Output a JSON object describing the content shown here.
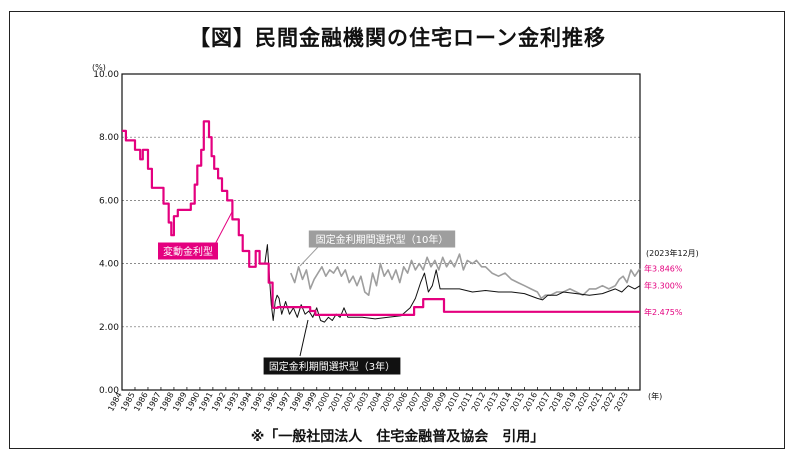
{
  "page": {
    "title": "【図】民間金融機関の住宅ローン金利推移",
    "source_note": "※「一般社団法人　住宅金融普及協会　引用」"
  },
  "chart_data": {
    "type": "line",
    "title": "【図】民間金融機関の住宅ローン金利推移",
    "y_unit": "(%)",
    "x_unit": "(年)",
    "ylim": [
      0,
      10
    ],
    "xlim": [
      1984,
      2023.9
    ],
    "y_ticks": [
      "0.00",
      "2.00",
      "4.00",
      "6.00",
      "8.00",
      "10.00"
    ],
    "x_ticks": [
      "1984",
      "1985",
      "1986",
      "1987",
      "1988",
      "1989",
      "1990",
      "1991",
      "1992",
      "1993",
      "1994",
      "1995",
      "1996",
      "1997",
      "1998",
      "1999",
      "2000",
      "2001",
      "2002",
      "2003",
      "2004",
      "2005",
      "2006",
      "2007",
      "2008",
      "2009",
      "2010",
      "2011",
      "2012",
      "2013",
      "2014",
      "2015",
      "2016",
      "2017",
      "2018",
      "2019",
      "2020",
      "2021",
      "2022",
      "2023"
    ],
    "grid": true,
    "date_note": "(2023年12月)",
    "series": [
      {
        "name": "変動金利型",
        "color": "#e4007f",
        "points": [
          [
            1984.0,
            8.2
          ],
          [
            1984.3,
            8.2
          ],
          [
            1984.3,
            7.9
          ],
          [
            1985.0,
            7.9
          ],
          [
            1985.0,
            7.6
          ],
          [
            1985.4,
            7.6
          ],
          [
            1985.4,
            7.3
          ],
          [
            1985.6,
            7.3
          ],
          [
            1985.6,
            7.6
          ],
          [
            1986.0,
            7.6
          ],
          [
            1986.0,
            7.0
          ],
          [
            1986.3,
            7.0
          ],
          [
            1986.3,
            6.4
          ],
          [
            1987.2,
            6.4
          ],
          [
            1987.2,
            5.9
          ],
          [
            1987.6,
            5.9
          ],
          [
            1987.6,
            5.3
          ],
          [
            1987.8,
            5.3
          ],
          [
            1987.8,
            4.9
          ],
          [
            1988.0,
            4.9
          ],
          [
            1988.0,
            5.5
          ],
          [
            1988.3,
            5.5
          ],
          [
            1988.3,
            5.7
          ],
          [
            1989.3,
            5.7
          ],
          [
            1989.3,
            5.9
          ],
          [
            1989.6,
            5.9
          ],
          [
            1989.6,
            6.5
          ],
          [
            1989.8,
            6.5
          ],
          [
            1989.8,
            7.1
          ],
          [
            1990.1,
            7.1
          ],
          [
            1990.1,
            7.6
          ],
          [
            1990.3,
            7.6
          ],
          [
            1990.3,
            8.5
          ],
          [
            1990.7,
            8.5
          ],
          [
            1990.7,
            8.0
          ],
          [
            1990.9,
            8.0
          ],
          [
            1990.9,
            7.4
          ],
          [
            1991.1,
            7.4
          ],
          [
            1991.1,
            7.0
          ],
          [
            1991.4,
            7.0
          ],
          [
            1991.4,
            6.7
          ],
          [
            1991.7,
            6.7
          ],
          [
            1991.7,
            6.3
          ],
          [
            1992.1,
            6.3
          ],
          [
            1992.1,
            6.0
          ],
          [
            1992.5,
            6.0
          ],
          [
            1992.5,
            5.4
          ],
          [
            1993.0,
            5.4
          ],
          [
            1993.0,
            4.9
          ],
          [
            1993.3,
            4.9
          ],
          [
            1993.3,
            4.4
          ],
          [
            1993.8,
            4.4
          ],
          [
            1993.8,
            3.9
          ],
          [
            1994.3,
            3.9
          ],
          [
            1994.3,
            4.4
          ],
          [
            1994.6,
            4.4
          ],
          [
            1994.6,
            4.0
          ],
          [
            1995.3,
            4.0
          ],
          [
            1995.3,
            3.4
          ],
          [
            1995.6,
            3.4
          ],
          [
            1995.6,
            2.6
          ],
          [
            1996.0,
            2.6
          ],
          [
            1996.0,
            2.625
          ],
          [
            1997.0,
            2.625
          ],
          [
            1998.5,
            2.625
          ],
          [
            1998.5,
            2.5
          ],
          [
            1998.9,
            2.5
          ],
          [
            1998.9,
            2.375
          ],
          [
            2001.0,
            2.375
          ],
          [
            2006.5,
            2.375
          ],
          [
            2006.5,
            2.625
          ],
          [
            2007.2,
            2.625
          ],
          [
            2007.2,
            2.875
          ],
          [
            2008.8,
            2.875
          ],
          [
            2008.8,
            2.475
          ],
          [
            2023.9,
            2.475
          ]
        ],
        "end_label": "年2.475%",
        "label_box": true
      },
      {
        "name": "固定金利期間選択型（10年）",
        "color": "#9e9e9e",
        "points": [
          [
            1997.0,
            3.7
          ],
          [
            1997.3,
            3.4
          ],
          [
            1997.6,
            3.9
          ],
          [
            1997.9,
            3.5
          ],
          [
            1998.2,
            3.8
          ],
          [
            1998.5,
            3.2
          ],
          [
            1998.8,
            3.5
          ],
          [
            1999.1,
            3.7
          ],
          [
            1999.4,
            3.9
          ],
          [
            1999.7,
            3.6
          ],
          [
            2000.0,
            3.8
          ],
          [
            2000.3,
            3.7
          ],
          [
            2000.6,
            3.9
          ],
          [
            2000.9,
            3.6
          ],
          [
            2001.2,
            3.8
          ],
          [
            2001.5,
            3.4
          ],
          [
            2001.8,
            3.6
          ],
          [
            2002.1,
            3.3
          ],
          [
            2002.4,
            3.6
          ],
          [
            2002.7,
            3.1
          ],
          [
            2003.0,
            3.0
          ],
          [
            2003.3,
            3.7
          ],
          [
            2003.6,
            3.3
          ],
          [
            2003.9,
            4.0
          ],
          [
            2004.2,
            3.6
          ],
          [
            2004.5,
            3.8
          ],
          [
            2004.8,
            3.5
          ],
          [
            2005.1,
            3.8
          ],
          [
            2005.4,
            3.4
          ],
          [
            2005.7,
            3.9
          ],
          [
            2006.0,
            3.7
          ],
          [
            2006.3,
            4.1
          ],
          [
            2006.6,
            3.8
          ],
          [
            2006.9,
            4.0
          ],
          [
            2007.2,
            3.8
          ],
          [
            2007.5,
            4.2
          ],
          [
            2007.8,
            3.9
          ],
          [
            2008.1,
            4.1
          ],
          [
            2008.4,
            3.8
          ],
          [
            2008.7,
            4.2
          ],
          [
            2009.0,
            3.9
          ],
          [
            2009.3,
            4.1
          ],
          [
            2009.6,
            3.9
          ],
          [
            2010.0,
            4.3
          ],
          [
            2010.3,
            3.8
          ],
          [
            2010.6,
            4.1
          ],
          [
            2011.0,
            4.0
          ],
          [
            2011.3,
            4.1
          ],
          [
            2011.7,
            3.9
          ],
          [
            2012.0,
            3.9
          ],
          [
            2012.5,
            3.7
          ],
          [
            2013.0,
            3.6
          ],
          [
            2013.5,
            3.7
          ],
          [
            2014.0,
            3.5
          ],
          [
            2014.5,
            3.4
          ],
          [
            2015.0,
            3.3
          ],
          [
            2015.5,
            3.2
          ],
          [
            2016.0,
            3.1
          ],
          [
            2016.3,
            2.9
          ],
          [
            2016.6,
            3.0
          ],
          [
            2017.0,
            3.0
          ],
          [
            2017.5,
            3.1
          ],
          [
            2018.0,
            3.1
          ],
          [
            2018.5,
            3.2
          ],
          [
            2019.0,
            3.1
          ],
          [
            2019.5,
            3.0
          ],
          [
            2020.0,
            3.2
          ],
          [
            2020.5,
            3.2
          ],
          [
            2021.0,
            3.3
          ],
          [
            2021.5,
            3.2
          ],
          [
            2022.0,
            3.3
          ],
          [
            2022.3,
            3.5
          ],
          [
            2022.6,
            3.6
          ],
          [
            2022.9,
            3.4
          ],
          [
            2023.2,
            3.8
          ],
          [
            2023.5,
            3.6
          ],
          [
            2023.9,
            3.846
          ]
        ],
        "end_label": "年3.846%",
        "label_box": true
      },
      {
        "name": "固定金利期間選択型（3年）",
        "color": "#111111",
        "points": [
          [
            1995.0,
            4.0
          ],
          [
            1995.2,
            4.6
          ],
          [
            1995.35,
            3.6
          ],
          [
            1995.5,
            2.7
          ],
          [
            1995.65,
            2.2
          ],
          [
            1995.8,
            2.8
          ],
          [
            1995.95,
            3.0
          ],
          [
            1996.1,
            2.9
          ],
          [
            1996.3,
            2.4
          ],
          [
            1996.6,
            2.8
          ],
          [
            1996.9,
            2.4
          ],
          [
            1997.2,
            2.6
          ],
          [
            1997.5,
            2.3
          ],
          [
            1997.8,
            2.7
          ],
          [
            1998.1,
            2.4
          ],
          [
            1998.4,
            2.5
          ],
          [
            1998.7,
            2.3
          ],
          [
            1999.0,
            2.6
          ],
          [
            1999.3,
            2.2
          ],
          [
            1999.6,
            2.15
          ],
          [
            1999.9,
            2.3
          ],
          [
            2000.2,
            2.2
          ],
          [
            2000.5,
            2.4
          ],
          [
            2000.8,
            2.3
          ],
          [
            2001.1,
            2.6
          ],
          [
            2001.4,
            2.3
          ],
          [
            2001.8,
            2.3
          ],
          [
            2002.5,
            2.3
          ],
          [
            2003.5,
            2.25
          ],
          [
            2004.5,
            2.3
          ],
          [
            2005.5,
            2.35
          ],
          [
            2006.2,
            2.6
          ],
          [
            2006.6,
            2.9
          ],
          [
            2007.0,
            3.4
          ],
          [
            2007.3,
            3.7
          ],
          [
            2007.6,
            3.1
          ],
          [
            2007.9,
            3.3
          ],
          [
            2008.2,
            3.8
          ],
          [
            2008.5,
            3.2
          ],
          [
            2009.0,
            3.2
          ],
          [
            2010.0,
            3.2
          ],
          [
            2011.0,
            3.1
          ],
          [
            2012.0,
            3.15
          ],
          [
            2013.0,
            3.1
          ],
          [
            2014.0,
            3.1
          ],
          [
            2015.0,
            3.05
          ],
          [
            2016.0,
            2.9
          ],
          [
            2016.4,
            2.85
          ],
          [
            2016.8,
            3.0
          ],
          [
            2017.5,
            3.0
          ],
          [
            2018.0,
            3.1
          ],
          [
            2019.0,
            3.05
          ],
          [
            2020.0,
            3.0
          ],
          [
            2021.0,
            3.05
          ],
          [
            2022.0,
            3.2
          ],
          [
            2022.5,
            3.1
          ],
          [
            2023.0,
            3.3
          ],
          [
            2023.5,
            3.2
          ],
          [
            2023.9,
            3.3
          ]
        ],
        "end_label": "年3.300%",
        "label_box": true
      }
    ]
  }
}
